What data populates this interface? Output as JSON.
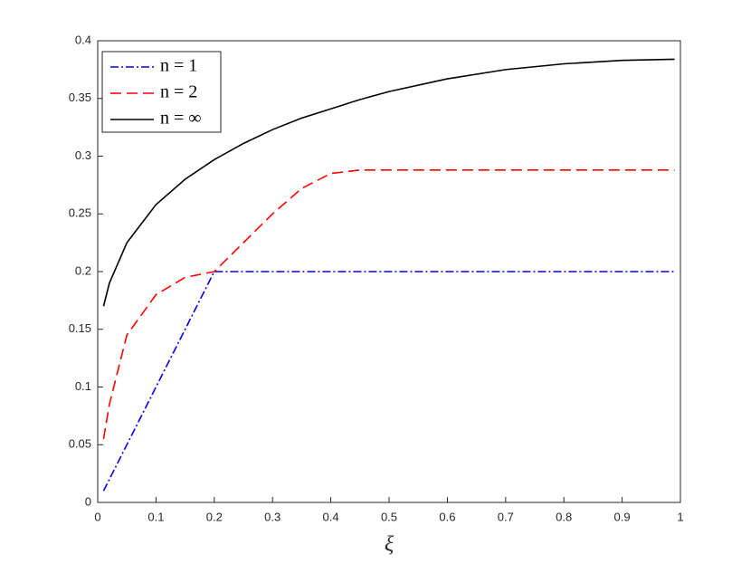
{
  "chart_data": {
    "type": "line",
    "x_label": "ξ",
    "x": [
      0.01,
      0.02,
      0.05,
      0.1,
      0.15,
      0.2,
      0.25,
      0.3,
      0.35,
      0.4,
      0.45,
      0.5,
      0.6,
      0.7,
      0.8,
      0.9,
      0.99
    ],
    "series": [
      {
        "name": "n = 1",
        "color": "#0000ff",
        "dash": "dash-dot",
        "values": [
          0.01,
          0.02,
          0.05,
          0.1,
          0.15,
          0.2,
          0.2,
          0.2,
          0.2,
          0.2,
          0.2,
          0.2,
          0.2,
          0.2,
          0.2,
          0.2,
          0.2
        ]
      },
      {
        "name": "n = 2",
        "color": "#ff0000",
        "dash": "dashed",
        "values": [
          0.055,
          0.085,
          0.145,
          0.18,
          0.195,
          0.2,
          0.225,
          0.25,
          0.272,
          0.285,
          0.288,
          0.288,
          0.288,
          0.288,
          0.288,
          0.288,
          0.288
        ]
      },
      {
        "name": "n = ∞",
        "color": "#000000",
        "dash": "solid",
        "values": [
          0.17,
          0.19,
          0.225,
          0.258,
          0.28,
          0.297,
          0.311,
          0.323,
          0.333,
          0.341,
          0.349,
          0.356,
          0.367,
          0.375,
          0.38,
          0.383,
          0.384
        ]
      }
    ],
    "xlim": [
      0,
      1
    ],
    "xticks": [
      0,
      0.1,
      0.2,
      0.3,
      0.4,
      0.5,
      0.6,
      0.7,
      0.8,
      0.9,
      1
    ],
    "ylim": [
      0,
      0.4
    ],
    "yticks": [
      0,
      0.05,
      0.1,
      0.15,
      0.2,
      0.25,
      0.3,
      0.35,
      0.4
    ],
    "grid": false,
    "legend": "upper-left"
  }
}
